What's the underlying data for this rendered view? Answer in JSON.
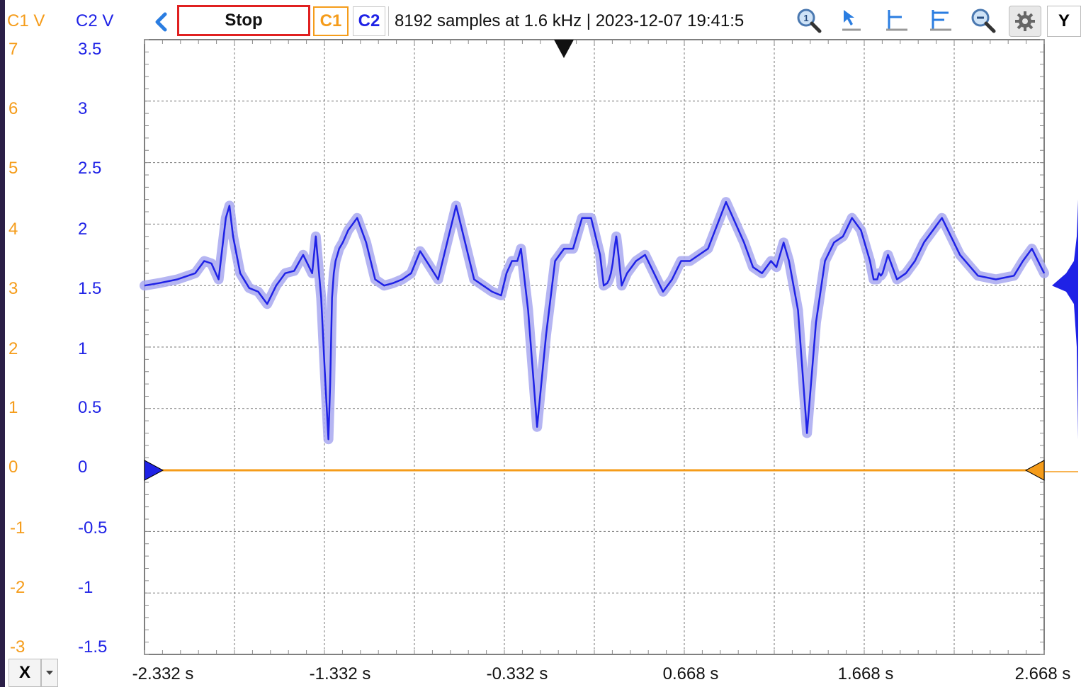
{
  "toolbar": {
    "c1_axis_label": "C1 V",
    "c2_axis_label": "C2 V",
    "run_button_label": "Stop",
    "c1_button_label": "C1",
    "c2_button_label": "C2",
    "info_text": "8192 samples at 1.6 kHz | 2023-12-07 19:41:5",
    "y_button_label": "Y",
    "tools": [
      "zoom-1-icon",
      "cursor-arrow-icon",
      "measure-level-icon",
      "measure-multi-level-icon",
      "zoom-out-icon"
    ]
  },
  "axes": {
    "c1_ticks": [
      "7",
      "6",
      "5",
      "4",
      "3",
      "2",
      "1",
      "0",
      "-1",
      "-2",
      "-3"
    ],
    "c2_ticks": [
      "3.5",
      "3",
      "2.5",
      "2",
      "1.5",
      "1",
      "0.5",
      "0",
      "-0.5",
      "-1",
      "-1.5"
    ],
    "x_ticks": [
      "-2.332 s",
      "-1.332 s",
      "-0.332 s",
      "0.668 s",
      "1.668 s",
      "2.668 s"
    ],
    "x_button_label": "X"
  },
  "colors": {
    "c1": "#f59c1a",
    "c2": "#1f22e6",
    "c2_band": "#a8a8f0",
    "stop_border": "#e02020"
  },
  "chart_data": {
    "type": "line",
    "x_range": [
      -2.332,
      2.668
    ],
    "y_range_c2": [
      -1.5,
      3.5
    ],
    "y_range_c1": [
      -3,
      7
    ],
    "grid": true,
    "series": [
      {
        "name": "C2",
        "x": [
          -2.332,
          -2.25,
          -2.15,
          -2.05,
          -2.0,
          -1.96,
          -1.92,
          -1.88,
          -1.86,
          -1.84,
          -1.8,
          -1.75,
          -1.7,
          -1.65,
          -1.6,
          -1.55,
          -1.5,
          -1.45,
          -1.4,
          -1.38,
          -1.35,
          -1.33,
          -1.31,
          -1.3,
          -1.29,
          -1.28,
          -1.27,
          -1.26,
          -1.25,
          -1.23,
          -1.2,
          -1.15,
          -1.1,
          -1.05,
          -1.0,
          -0.95,
          -0.9,
          -0.85,
          -0.8,
          -0.7,
          -0.6,
          -0.5,
          -0.45,
          -0.4,
          -0.35,
          -0.32,
          -0.29,
          -0.26,
          -0.24,
          -0.2,
          -0.15,
          -0.1,
          -0.05,
          0.0,
          0.05,
          0.1,
          0.15,
          0.2,
          0.22,
          0.24,
          0.25,
          0.26,
          0.27,
          0.28,
          0.29,
          0.3,
          0.32,
          0.35,
          0.4,
          0.45,
          0.5,
          0.55,
          0.6,
          0.65,
          0.7,
          0.8,
          0.9,
          1.0,
          1.05,
          1.1,
          1.15,
          1.18,
          1.2,
          1.22,
          1.25,
          1.3,
          1.35,
          1.4,
          1.45,
          1.5,
          1.55,
          1.6,
          1.65,
          1.7,
          1.72,
          1.74,
          1.75,
          1.76,
          1.77,
          1.78,
          1.8,
          1.85,
          1.9,
          1.95,
          2.0,
          2.05,
          2.1,
          2.2,
          2.3,
          2.4,
          2.5,
          2.55,
          2.6,
          2.668
        ],
        "values": [
          1.5,
          1.52,
          1.55,
          1.6,
          1.7,
          1.68,
          1.55,
          2.05,
          2.15,
          1.9,
          1.6,
          1.48,
          1.45,
          1.35,
          1.5,
          1.6,
          1.62,
          1.75,
          1.6,
          1.9,
          1.4,
          0.8,
          0.25,
          0.7,
          1.4,
          1.6,
          1.7,
          1.75,
          1.8,
          1.85,
          1.95,
          2.05,
          1.85,
          1.55,
          1.5,
          1.52,
          1.55,
          1.6,
          1.78,
          1.55,
          2.15,
          1.55,
          1.5,
          1.45,
          1.42,
          1.6,
          1.7,
          1.7,
          1.8,
          1.3,
          0.35,
          1.1,
          1.7,
          1.8,
          1.8,
          2.05,
          2.05,
          1.75,
          1.5,
          1.52,
          1.55,
          1.6,
          1.68,
          1.8,
          1.9,
          1.78,
          1.5,
          1.6,
          1.7,
          1.75,
          1.6,
          1.45,
          1.55,
          1.7,
          1.7,
          1.8,
          2.18,
          1.85,
          1.65,
          1.6,
          1.7,
          1.65,
          1.75,
          1.85,
          1.7,
          1.3,
          0.3,
          1.2,
          1.7,
          1.85,
          1.9,
          2.05,
          1.95,
          1.7,
          1.55,
          1.55,
          1.6,
          1.58,
          1.6,
          1.65,
          1.75,
          1.55,
          1.6,
          1.7,
          1.85,
          1.95,
          2.05,
          1.75,
          1.58,
          1.55,
          1.58,
          1.7,
          1.8,
          1.6
        ]
      },
      {
        "name": "C1",
        "x": [
          -2.332,
          2.668
        ],
        "values": [
          0,
          0
        ]
      }
    ]
  }
}
